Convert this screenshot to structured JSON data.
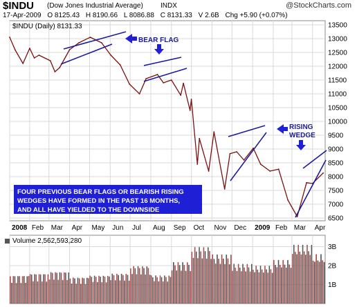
{
  "header": {
    "symbol": "$INDU",
    "name": "(Dow Jones Industrial Average)",
    "exchange": "INDX",
    "brand": "@StockCharts.com",
    "date": "17-Apr-2009",
    "open": "O 8125.43",
    "high": "H 8190.66",
    "low": "L 8086.88",
    "close": "C 8131.33",
    "volume": "V 2.6B",
    "change": "Chg +5.90 (+0.07%)"
  },
  "price_legend": "$INDU (Daily) 8131.33",
  "volume_legend": "Volume 2,562,593,280",
  "annotations": {
    "bear_flag": "BEAR FLAG",
    "rising_wedge_line1": "RISING",
    "rising_wedge_line2": "WEDGE",
    "note_line1": "FOUR PREVIOUS BEAR FLAGS OR BEARISH RISING",
    "note_line2": "WEDGES HAVE FORMED IN THE PAST 16 MONTHS,",
    "note_line3": "AND ALL HAVE YIELDED TO THE DOWNSIDE"
  },
  "colors": {
    "price_line": "#7a0f0f",
    "trend_line": "#1a1a9a",
    "arrow": "#1f1fd6",
    "volume_bar": "#a84a4a",
    "volume_bar_dark": "#555555",
    "grid": "#d9d9d9",
    "note_bg": "#1f1fd6",
    "note_text": "#ffffff"
  },
  "chart_data": [
    {
      "type": "line",
      "title": "$INDU (Daily) 8131.33",
      "x_tick_labels": [
        "2008",
        "Feb",
        "Mar",
        "Apr",
        "May",
        "Jun",
        "Jul",
        "Aug",
        "Sep",
        "Oct",
        "Nov",
        "Dec",
        "2009",
        "Feb",
        "Mar",
        "Apr"
      ],
      "y_tick_labels": [
        "13500",
        "13000",
        "12500",
        "12000",
        "11500",
        "11000",
        "10500",
        "10000",
        "9500",
        "9000",
        "8500",
        "8000",
        "7500",
        "7000",
        "6500"
      ],
      "ylim": [
        6400,
        13650
      ],
      "x": [
        "2008-01-02",
        "2008-01-10",
        "2008-01-22",
        "2008-02-01",
        "2008-02-08",
        "2008-02-15",
        "2008-03-03",
        "2008-03-10",
        "2008-03-17",
        "2008-04-01",
        "2008-04-15",
        "2008-05-02",
        "2008-05-19",
        "2008-06-02",
        "2008-06-16",
        "2008-06-30",
        "2008-07-15",
        "2008-07-25",
        "2008-08-11",
        "2008-08-20",
        "2008-09-01",
        "2008-09-15",
        "2008-09-19",
        "2008-09-29",
        "2008-10-01",
        "2008-10-10",
        "2008-10-13",
        "2008-10-27",
        "2008-11-04",
        "2008-11-20",
        "2008-11-28",
        "2008-12-08",
        "2008-12-19",
        "2009-01-02",
        "2009-01-13",
        "2009-01-27",
        "2009-02-09",
        "2009-02-23",
        "2009-03-09",
        "2009-03-23",
        "2009-04-01",
        "2009-04-17"
      ],
      "values": [
        13050,
        12600,
        12100,
        12650,
        12300,
        12400,
        12200,
        11800,
        11950,
        12600,
        12850,
        13050,
        12850,
        12400,
        12050,
        11350,
        11000,
        11550,
        11700,
        11400,
        11500,
        10950,
        11380,
        10400,
        10800,
        8450,
        9380,
        8200,
        9620,
        7550,
        8830,
        8900,
        8600,
        9030,
        8450,
        8200,
        8270,
        7150,
        6550,
        7780,
        7750,
        8131
      ],
      "series": [
        {
          "name": "$INDU",
          "values": [
            13050,
            12600,
            12100,
            12650,
            12300,
            12400,
            12200,
            11800,
            11950,
            12600,
            12850,
            13050,
            12850,
            12400,
            12050,
            11350,
            11000,
            11550,
            11700,
            11400,
            11500,
            10950,
            11380,
            10400,
            10800,
            8450,
            9380,
            8200,
            9620,
            7550,
            8830,
            8900,
            8600,
            9030,
            8450,
            8200,
            8270,
            7150,
            6550,
            7780,
            7750,
            8131
          ]
        }
      ],
      "grid": true,
      "y_axis_side": "right"
    },
    {
      "type": "bar",
      "title": "Volume 2,562,593,280",
      "y_tick_labels": [
        "3B",
        "2B",
        "1B"
      ],
      "ylim": [
        0,
        3.6
      ],
      "unit": "billions of shares",
      "x": [
        "2008-01",
        "2008-02",
        "2008-03",
        "2008-04",
        "2008-05",
        "2008-06",
        "2008-07",
        "2008-08",
        "2008-09",
        "2008-10",
        "2008-11",
        "2008-12",
        "2009-01",
        "2009-02",
        "2009-03",
        "2009-04"
      ],
      "values": [
        1.5,
        1.6,
        1.7,
        1.4,
        1.5,
        1.6,
        2.0,
        1.5,
        2.2,
        3.0,
        2.6,
        2.1,
        2.0,
        2.3,
        3.1,
        2.6
      ],
      "grid": true
    }
  ]
}
